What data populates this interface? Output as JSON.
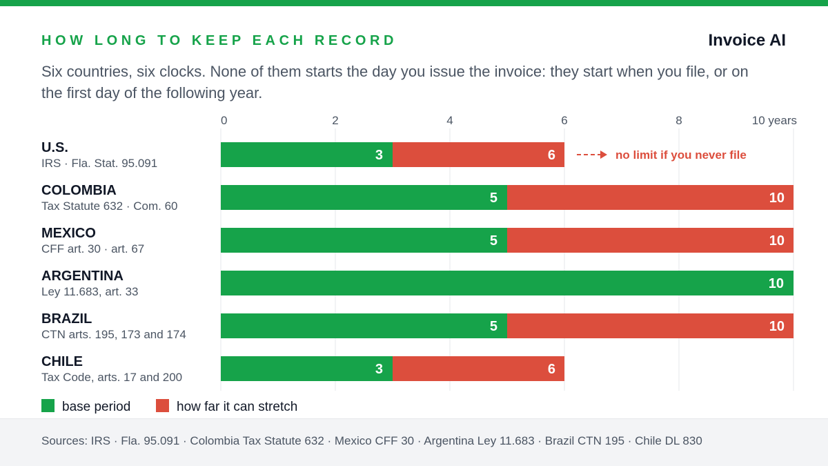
{
  "header": {
    "eyebrow": "HOW LONG TO KEEP EACH RECORD",
    "brand": "Invoice AI",
    "subtitle": "Six countries, six clocks. None of them starts the day you issue the invoice: they start when you file, or on the first day of the following year."
  },
  "colors": {
    "accent": "#16a34a",
    "base": "#16a34a",
    "stretch": "#dc4e3d",
    "grid": "#e5e7eb",
    "text": "#111827",
    "muted": "#4b5563"
  },
  "chart_data": {
    "type": "bar",
    "orientation": "horizontal",
    "stacked": true,
    "x_range": [
      0,
      10
    ],
    "x_ticks": [
      {
        "value": 0,
        "label": "0"
      },
      {
        "value": 2,
        "label": "2"
      },
      {
        "value": 4,
        "label": "4"
      },
      {
        "value": 6,
        "label": "6"
      },
      {
        "value": 8,
        "label": "8"
      },
      {
        "value": 10,
        "label": "10 years"
      }
    ],
    "grid": true,
    "legend_position": "bottom-left",
    "series": [
      {
        "name": "base period",
        "color": "#16a34a"
      },
      {
        "name": "how far it can stretch",
        "color": "#dc4e3d"
      }
    ],
    "rows": [
      {
        "country": "U.S.",
        "law": "IRS · Fla. Stat. 95.091",
        "base": 3,
        "max": 6,
        "note": "no limit if you never file"
      },
      {
        "country": "COLOMBIA",
        "law": "Tax Statute 632 · Com. 60",
        "base": 5,
        "max": 10
      },
      {
        "country": "MEXICO",
        "law": "CFF art. 30 · art. 67",
        "base": 5,
        "max": 10
      },
      {
        "country": "ARGENTINA",
        "law": "Ley 11.683, art. 33",
        "base": 10,
        "max": 10
      },
      {
        "country": "BRAZIL",
        "law": "CTN arts. 195, 173 and 174",
        "base": 5,
        "max": 10
      },
      {
        "country": "CHILE",
        "law": "Tax Code, arts. 17 and 200",
        "base": 3,
        "max": 6
      }
    ]
  },
  "footer": {
    "sources": "Sources: IRS · Fla. 95.091 · Colombia Tax Statute 632 · Mexico CFF 30 · Argentina Ley 11.683 · Brazil CTN 195 · Chile DL 830"
  }
}
